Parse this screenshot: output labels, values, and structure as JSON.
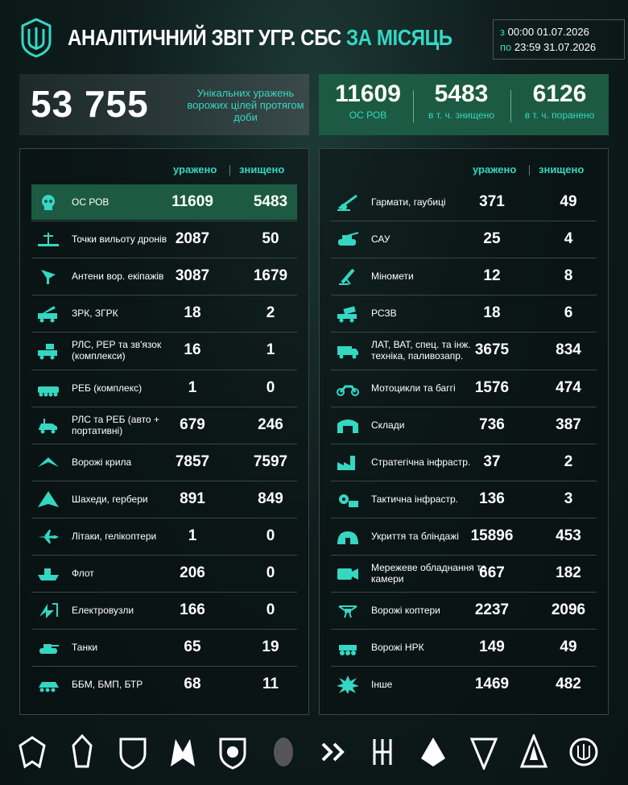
{
  "header": {
    "title_main": "АНАЛІТИЧНИЙ ЗВІТ УГР. СБС",
    "title_accent": "ЗА МІСЯЦЬ",
    "from_label": "з",
    "from_value": "00:00 01.07.2026",
    "to_label": "по",
    "to_value": "23:59 31.07.2026"
  },
  "total": {
    "value": "53 755",
    "description": "Унікальних уражень ворожих цілей протягом доби"
  },
  "os": [
    {
      "value": "11609",
      "label": "ОС РОВ"
    },
    {
      "value": "5483",
      "label": "в т. ч. знищено"
    },
    {
      "value": "6126",
      "label": "в т. ч. поранено"
    }
  ],
  "columns": {
    "hit": "уражено",
    "destroyed": "знищено"
  },
  "left_rows": [
    {
      "label": "ОС РОВ",
      "hit": "11609",
      "destroyed": "5483",
      "icon": "skull-icon"
    },
    {
      "label": "Точки вильоту дронів",
      "hit": "2087",
      "destroyed": "50",
      "icon": "launch-point-icon"
    },
    {
      "label": "Антени вор. екіпажів",
      "hit": "3087",
      "destroyed": "1679",
      "icon": "antenna-icon"
    },
    {
      "label": "ЗРК, ЗГРК",
      "hit": "18",
      "destroyed": "2",
      "icon": "sam-truck-icon"
    },
    {
      "label": "РЛС, РЕР та зв'язок (комплекси)",
      "hit": "16",
      "destroyed": "1",
      "icon": "radar-truck-icon"
    },
    {
      "label": "РЕБ (комплекс)",
      "hit": "1",
      "destroyed": "0",
      "icon": "ew-vehicle-icon"
    },
    {
      "label": "РЛС та РЕБ (авто + портативні)",
      "hit": "679",
      "destroyed": "246",
      "icon": "ew-car-icon"
    },
    {
      "label": "Ворожі крила",
      "hit": "7857",
      "destroyed": "7597",
      "icon": "wing-icon"
    },
    {
      "label": "Шахеди, гербери",
      "hit": "891",
      "destroyed": "849",
      "icon": "shahed-icon"
    },
    {
      "label": "Літаки, гелікоптери",
      "hit": "1",
      "destroyed": "0",
      "icon": "jet-icon"
    },
    {
      "label": "Флот",
      "hit": "206",
      "destroyed": "0",
      "icon": "ship-icon"
    },
    {
      "label": "Електровузли",
      "hit": "166",
      "destroyed": "0",
      "icon": "power-node-icon"
    },
    {
      "label": "Танки",
      "hit": "65",
      "destroyed": "19",
      "icon": "tank-icon"
    },
    {
      "label": "ББМ, БМП, БТР",
      "hit": "68",
      "destroyed": "11",
      "icon": "apc-icon"
    }
  ],
  "right_rows": [
    {
      "label": "Гармати, гаубиці",
      "hit": "371",
      "destroyed": "49",
      "icon": "howitzer-icon"
    },
    {
      "label": "САУ",
      "hit": "25",
      "destroyed": "4",
      "icon": "spg-icon"
    },
    {
      "label": "Міномети",
      "hit": "12",
      "destroyed": "8",
      "icon": "mortar-icon"
    },
    {
      "label": "РСЗВ",
      "hit": "18",
      "destroyed": "6",
      "icon": "mlrs-icon"
    },
    {
      "label": "ЛАТ, ВАТ, спец. та інж. техніка, паливозапр.",
      "hit": "3675",
      "destroyed": "834",
      "icon": "truck-icon"
    },
    {
      "label": "Мотоцикли та баггі",
      "hit": "1576",
      "destroyed": "474",
      "icon": "motorcycle-icon"
    },
    {
      "label": "Склади",
      "hit": "736",
      "destroyed": "387",
      "icon": "warehouse-icon"
    },
    {
      "label": "Стратегічна інфрастр.",
      "hit": "37",
      "destroyed": "2",
      "icon": "factory-icon"
    },
    {
      "label": "Тактична інфрастр.",
      "hit": "136",
      "destroyed": "3",
      "icon": "gear-infra-icon"
    },
    {
      "label": "Укриття та бліндажі",
      "hit": "15896",
      "destroyed": "453",
      "icon": "bunker-icon"
    },
    {
      "label": "Мережеве обладнання та камери",
      "hit": "667",
      "destroyed": "182",
      "icon": "network-icon"
    },
    {
      "label": "Ворожі коптери",
      "hit": "2237",
      "destroyed": "2096",
      "icon": "quadcopter-icon"
    },
    {
      "label": "Ворожі НРК",
      "hit": "149",
      "destroyed": "49",
      "icon": "ugv-icon"
    },
    {
      "label": "Інше",
      "hit": "1469",
      "destroyed": "482",
      "icon": "explosion-icon"
    }
  ],
  "colors": {
    "accent": "#35d7c2",
    "highlight": "#1d5a43",
    "background": "#0e1c1c"
  }
}
